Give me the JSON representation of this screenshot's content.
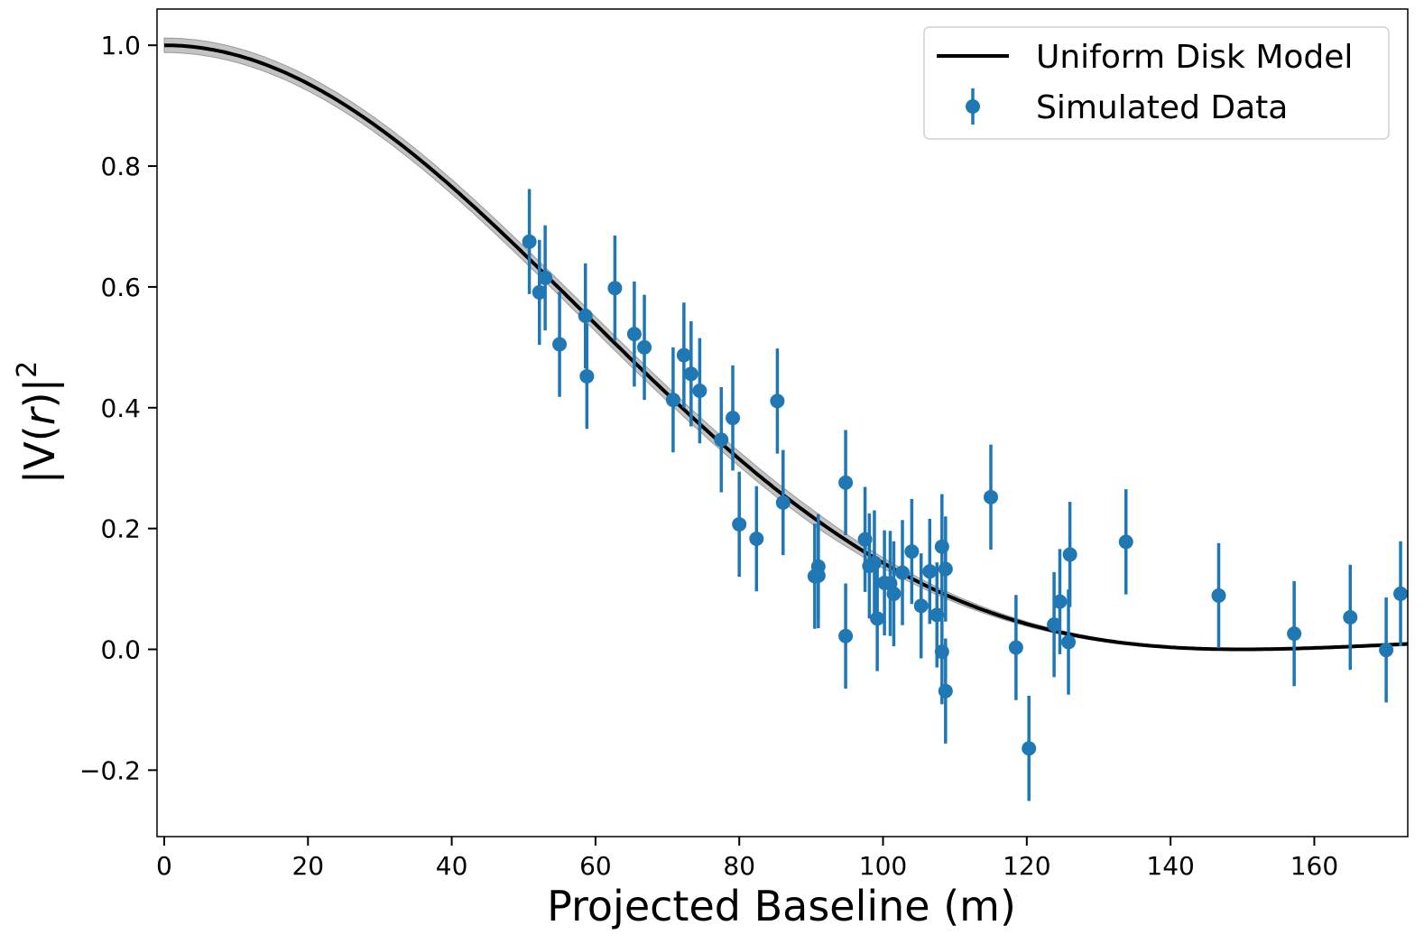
{
  "chart_data": {
    "type": "scatter",
    "xlabel": "Projected Baseline (m)",
    "ylabel_parts": [
      "|V(",
      "r",
      ")|",
      "2"
    ],
    "xlim": [
      -1,
      173
    ],
    "ylim": [
      -0.31,
      1.06
    ],
    "xticks": [
      0,
      20,
      40,
      60,
      80,
      100,
      120,
      140,
      160
    ],
    "yticks": [
      -0.2,
      0.0,
      0.2,
      0.4,
      0.6,
      0.8,
      1.0
    ],
    "xtick_labels": [
      "0",
      "20",
      "40",
      "60",
      "80",
      "100",
      "120",
      "140",
      "160"
    ],
    "ytick_labels": [
      "−0.2",
      "0.0",
      "0.2",
      "0.4",
      "0.6",
      "0.8",
      "1.0"
    ],
    "grid": false,
    "legend_position": "top-right",
    "model": {
      "name": "Uniform Disk Model",
      "description": "|2 J1(x)/x|^2 visibility curve",
      "first_null_baseline_m": 150,
      "band_halfwidth": 0.012,
      "color": "#000000",
      "band_color": "#bdbdbd"
    },
    "series": [
      {
        "name": "Simulated Data",
        "color": "#1f77b4",
        "error": 0.087,
        "points": [
          [
            50.8,
            0.675
          ],
          [
            52.2,
            0.591
          ],
          [
            53.0,
            0.615
          ],
          [
            55.0,
            0.505
          ],
          [
            58.6,
            0.552
          ],
          [
            58.8,
            0.452
          ],
          [
            62.7,
            0.598
          ],
          [
            65.4,
            0.522
          ],
          [
            66.8,
            0.5
          ],
          [
            70.8,
            0.413
          ],
          [
            72.3,
            0.487
          ],
          [
            73.3,
            0.456
          ],
          [
            74.5,
            0.428
          ],
          [
            77.5,
            0.347
          ],
          [
            79.1,
            0.383
          ],
          [
            80.0,
            0.207
          ],
          [
            82.4,
            0.183
          ],
          [
            85.3,
            0.411
          ],
          [
            86.1,
            0.243
          ],
          [
            90.5,
            0.121
          ],
          [
            91.0,
            0.137
          ],
          [
            91.0,
            0.122
          ],
          [
            94.8,
            0.276
          ],
          [
            94.8,
            0.022
          ],
          [
            97.5,
            0.182
          ],
          [
            98.1,
            0.138
          ],
          [
            98.8,
            0.143
          ],
          [
            99.2,
            0.051
          ],
          [
            100.2,
            0.11
          ],
          [
            101.0,
            0.109
          ],
          [
            101.5,
            0.092
          ],
          [
            102.7,
            0.127
          ],
          [
            104.0,
            0.162
          ],
          [
            105.3,
            0.072
          ],
          [
            106.5,
            0.129
          ],
          [
            107.5,
            0.057
          ],
          [
            108.2,
            0.17
          ],
          [
            108.2,
            -0.004
          ],
          [
            108.7,
            -0.069
          ],
          [
            108.7,
            0.133
          ],
          [
            115.0,
            0.252
          ],
          [
            118.5,
            0.003
          ],
          [
            120.3,
            -0.164
          ],
          [
            123.8,
            0.041
          ],
          [
            124.6,
            0.079
          ],
          [
            125.8,
            0.012
          ],
          [
            126.0,
            0.157
          ],
          [
            133.8,
            0.178
          ],
          [
            146.7,
            0.089
          ],
          [
            157.2,
            0.026
          ],
          [
            165.0,
            0.053
          ],
          [
            170.0,
            -0.001
          ],
          [
            172.0,
            0.092
          ]
        ]
      }
    ]
  }
}
